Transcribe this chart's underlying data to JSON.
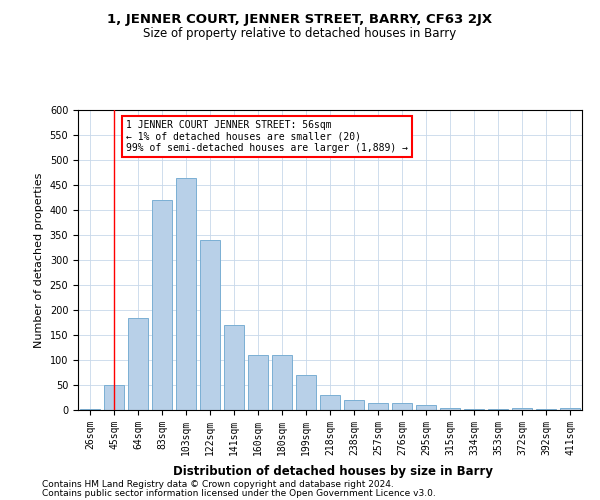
{
  "title1": "1, JENNER COURT, JENNER STREET, BARRY, CF63 2JX",
  "title2": "Size of property relative to detached houses in Barry",
  "xlabel": "Distribution of detached houses by size in Barry",
  "ylabel": "Number of detached properties",
  "categories": [
    "26sqm",
    "45sqm",
    "64sqm",
    "83sqm",
    "103sqm",
    "122sqm",
    "141sqm",
    "160sqm",
    "180sqm",
    "199sqm",
    "218sqm",
    "238sqm",
    "257sqm",
    "276sqm",
    "295sqm",
    "315sqm",
    "334sqm",
    "353sqm",
    "372sqm",
    "392sqm",
    "411sqm"
  ],
  "values": [
    2,
    50,
    185,
    420,
    465,
    340,
    170,
    110,
    110,
    70,
    30,
    20,
    15,
    15,
    10,
    5,
    2,
    2,
    5,
    2,
    5
  ],
  "bar_color": "#b8d0e8",
  "bar_edge_color": "#7aafd4",
  "vline_x": 1,
  "vline_color": "red",
  "annotation_text": "1 JENNER COURT JENNER STREET: 56sqm\n← 1% of detached houses are smaller (20)\n99% of semi-detached houses are larger (1,889) →",
  "annotation_box_color": "white",
  "annotation_box_edge_color": "red",
  "ylim": [
    0,
    600
  ],
  "yticks": [
    0,
    50,
    100,
    150,
    200,
    250,
    300,
    350,
    400,
    450,
    500,
    550,
    600
  ],
  "grid_color": "#c8d8ea",
  "background_color": "white",
  "footer1": "Contains HM Land Registry data © Crown copyright and database right 2024.",
  "footer2": "Contains public sector information licensed under the Open Government Licence v3.0.",
  "title1_fontsize": 9.5,
  "title2_fontsize": 8.5,
  "xlabel_fontsize": 8.5,
  "ylabel_fontsize": 8,
  "tick_fontsize": 7,
  "annot_fontsize": 7,
  "footer_fontsize": 6.5
}
